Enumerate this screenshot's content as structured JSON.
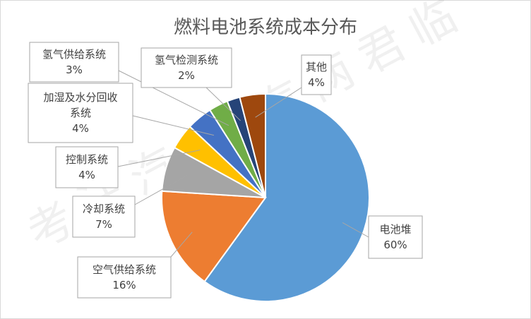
{
  "chart_data": {
    "type": "pie",
    "title": "燃料电池系统成本分布",
    "slices": [
      {
        "label": "电池堆",
        "value": 60,
        "value_label": "60%",
        "color": "#5B9BD5"
      },
      {
        "label": "空气供给系统",
        "value": 16,
        "value_label": "16%",
        "color": "#ED7D31"
      },
      {
        "label": "冷却系统",
        "value": 7,
        "value_label": "7%",
        "color": "#A5A5A5"
      },
      {
        "label": "控制系统",
        "value": 4,
        "value_label": "4%",
        "color": "#FFC000"
      },
      {
        "label": "加湿及水分回收系统",
        "value": 4,
        "value_label": "4%",
        "color": "#4472C4"
      },
      {
        "label": "氢气供给系统",
        "value": 3,
        "value_label": "3%",
        "color": "#70AD47"
      },
      {
        "label": "氢气检测系统",
        "value": 2,
        "value_label": "2%",
        "color": "#264478"
      },
      {
        "label": "其他",
        "value": 4,
        "value_label": "4%",
        "color": "#9E480E"
      }
    ],
    "legend": "none",
    "data_labels": "callouts"
  },
  "watermark": "考汪汽车 汽两君临"
}
